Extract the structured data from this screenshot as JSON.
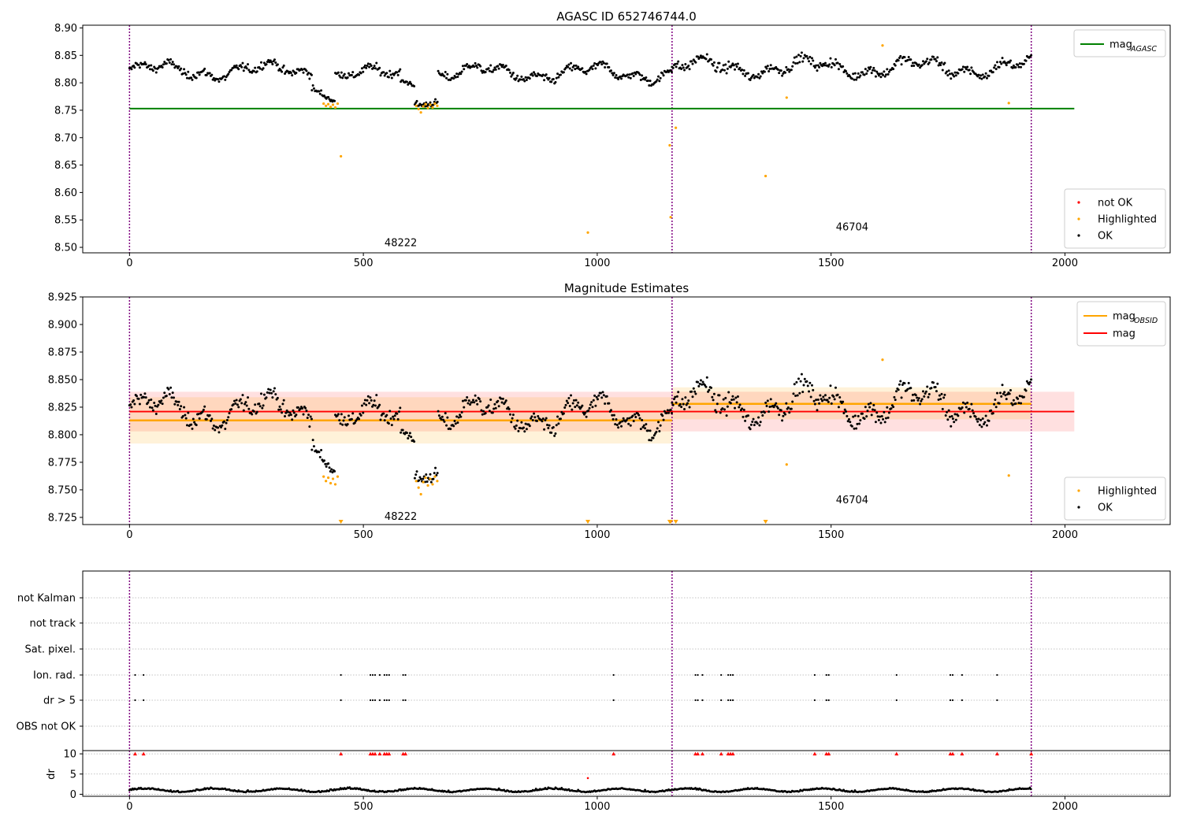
{
  "chart_data": [
    {
      "type": "scatter",
      "title": "AGASC ID 652746744.0",
      "xlim": [
        -100,
        2225
      ],
      "ylim": [
        8.49,
        8.905
      ],
      "x_ticks": [
        0,
        500,
        1000,
        1500,
        2000
      ],
      "y_ticks": [
        8.5,
        8.55,
        8.6,
        8.65,
        8.7,
        8.75,
        8.8,
        8.85,
        8.9
      ],
      "y_tick_labels": [
        "8.50",
        "8.55",
        "8.60",
        "8.65",
        "8.70",
        "8.75",
        "8.80",
        "8.85",
        "8.90"
      ],
      "obs_boundaries": [
        0,
        1160,
        1928
      ],
      "obs_labels": [
        {
          "text": "48222",
          "x": 580,
          "y": 8.508
        },
        {
          "text": "46704",
          "x": 1545,
          "y": 8.537
        }
      ],
      "mag_agasc": {
        "value": 8.753,
        "x": [
          0,
          2020
        ]
      },
      "legend_lines": [
        {
          "name_main": "mag",
          "name_sub": "AGASC",
          "color": "#008000"
        }
      ],
      "legend_points": [
        {
          "name": "not OK",
          "color": "#ff0000"
        },
        {
          "name": "Highlighted",
          "color": "#ffa500"
        },
        {
          "name": "OK",
          "color": "#000000"
        }
      ],
      "legend_lines_position": "top-right",
      "legend_points_position": "bottom-right",
      "ok_segments": [
        {
          "x0": 0,
          "x1": 390,
          "mean": 8.822,
          "amp": 0.018,
          "noise": 0.007,
          "step": 2.2
        },
        {
          "x0": 390,
          "x1": 440,
          "mean_start": 8.79,
          "mean_end": 8.765,
          "amp": 0.0,
          "noise": 0.006,
          "step": 2.2
        },
        {
          "x0": 440,
          "x1": 580,
          "mean": 8.815,
          "amp": 0.015,
          "noise": 0.007,
          "step": 2.2
        },
        {
          "x0": 580,
          "x1": 610,
          "mean": 8.8,
          "amp": 0.005,
          "noise": 0.006,
          "step": 2.2
        },
        {
          "x0": 610,
          "x1": 660,
          "mean": 8.765,
          "amp": 0.006,
          "noise": 0.006,
          "step": 2.2
        },
        {
          "x0": 660,
          "x1": 1160,
          "mean": 8.818,
          "amp": 0.018,
          "noise": 0.007,
          "step": 2.2
        },
        {
          "x0": 1160,
          "x1": 1928,
          "mean": 8.828,
          "amp": 0.02,
          "noise": 0.008,
          "step": 2.2
        }
      ],
      "highlighted_points": [
        [
          415,
          8.762
        ],
        [
          420,
          8.758
        ],
        [
          425,
          8.761
        ],
        [
          430,
          8.756
        ],
        [
          435,
          8.76
        ],
        [
          440,
          8.755
        ],
        [
          445,
          8.762
        ],
        [
          452,
          8.666
        ],
        [
          613,
          8.758
        ],
        [
          618,
          8.752
        ],
        [
          623,
          8.746
        ],
        [
          628,
          8.757
        ],
        [
          633,
          8.761
        ],
        [
          638,
          8.754
        ],
        [
          643,
          8.76
        ],
        [
          648,
          8.755
        ],
        [
          653,
          8.762
        ],
        [
          658,
          8.758
        ],
        [
          980,
          8.527
        ],
        [
          1155,
          8.686
        ],
        [
          1157,
          8.555
        ],
        [
          1168,
          8.718
        ],
        [
          1360,
          8.63
        ],
        [
          1405,
          8.773
        ],
        [
          1610,
          8.868
        ],
        [
          1880,
          8.763
        ]
      ]
    },
    {
      "type": "scatter",
      "title": "Magnitude Estimates",
      "xlim": [
        -100,
        2225
      ],
      "ylim": [
        8.7185,
        8.925
      ],
      "x_ticks": [
        0,
        500,
        1000,
        1500,
        2000
      ],
      "y_ticks": [
        8.725,
        8.75,
        8.775,
        8.8,
        8.825,
        8.85,
        8.875,
        8.9,
        8.925
      ],
      "y_tick_labels": [
        "8.725",
        "8.750",
        "8.775",
        "8.800",
        "8.825",
        "8.850",
        "8.875",
        "8.900",
        "8.925"
      ],
      "obs_boundaries": [
        0,
        1160,
        1928
      ],
      "obs_labels": [
        {
          "text": "48222",
          "x": 580,
          "y": 8.7255
        },
        {
          "text": "46704",
          "x": 1545,
          "y": 8.7405
        }
      ],
      "mag": {
        "value": 8.821,
        "band": [
          8.803,
          8.839
        ],
        "x": [
          0,
          2020
        ]
      },
      "mag_obsid": [
        {
          "x": [
            0,
            1160
          ],
          "value": 8.813,
          "band": [
            8.792,
            8.834
          ],
          "band_light": [
            8.792,
            8.834
          ]
        },
        {
          "x": [
            1160,
            1928
          ],
          "value": 8.828,
          "band": [
            8.814,
            8.843
          ],
          "band_light": [
            8.814,
            8.843
          ]
        }
      ],
      "legend_lines": [
        {
          "name_main": "mag",
          "name_sub": "OBSID",
          "color": "#ffa500"
        },
        {
          "name_main": "mag",
          "name_sub": "",
          "color": "#ff0000"
        }
      ],
      "legend_points": [
        {
          "name": "Highlighted",
          "color": "#ffa500"
        },
        {
          "name": "OK",
          "color": "#000000"
        }
      ],
      "legend_lines_position": "top-right",
      "legend_points_position": "bottom-right",
      "offscale_markers_x": [
        452,
        980,
        1155,
        1157,
        1168,
        1360
      ],
      "highlighted_points": [
        [
          415,
          8.762
        ],
        [
          420,
          8.758
        ],
        [
          425,
          8.761
        ],
        [
          430,
          8.756
        ],
        [
          435,
          8.76
        ],
        [
          440,
          8.755
        ],
        [
          445,
          8.762
        ],
        [
          613,
          8.758
        ],
        [
          618,
          8.752
        ],
        [
          623,
          8.746
        ],
        [
          628,
          8.757
        ],
        [
          633,
          8.761
        ],
        [
          638,
          8.754
        ],
        [
          643,
          8.76
        ],
        [
          648,
          8.755
        ],
        [
          653,
          8.762
        ],
        [
          658,
          8.758
        ],
        [
          1405,
          8.773
        ],
        [
          1610,
          8.868
        ],
        [
          1880,
          8.763
        ]
      ]
    },
    {
      "type": "scatter",
      "xlim": [
        -100,
        2225
      ],
      "obs_boundaries": [
        0,
        1160,
        1928
      ],
      "flag_rows": [
        "not Kalman",
        "not track",
        "Sat. pixel.",
        "Ion. rad.",
        "dr > 5",
        "OBS not OK"
      ],
      "flag_points_x": [
        12,
        30,
        452,
        515,
        520,
        525,
        535,
        545,
        550,
        555,
        585,
        590,
        1035,
        1210,
        1215,
        1225,
        1265,
        1280,
        1285,
        1290,
        1465,
        1490,
        1495,
        1640,
        1755,
        1760,
        1780,
        1855
      ],
      "dr_ylim": [
        -0.5,
        10.8
      ],
      "dr_ticks": [
        0,
        5,
        10
      ],
      "dr_label": "dr",
      "dr_outlier_points": [
        [
          980,
          4.0
        ]
      ],
      "dr_clipped_x": [
        12,
        30,
        452,
        515,
        520,
        525,
        535,
        545,
        550,
        555,
        585,
        590,
        1035,
        1210,
        1215,
        1225,
        1265,
        1280,
        1285,
        1290,
        1465,
        1490,
        1495,
        1640,
        1755,
        1760,
        1780,
        1855,
        1928
      ]
    }
  ]
}
